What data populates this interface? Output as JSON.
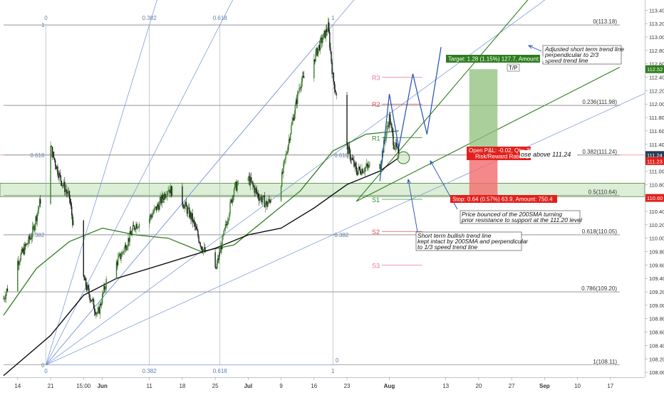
{
  "chart_data": {
    "type": "candlestick",
    "title": "",
    "xlabel": "",
    "ylabel": "",
    "ylim": [
      107.98,
      113.52
    ],
    "price_ticks": [
      108.0,
      108.2,
      108.4,
      108.6,
      108.8,
      109.0,
      109.2,
      109.4,
      109.6,
      109.8,
      110.0,
      110.2,
      110.4,
      110.6,
      110.8,
      111.0,
      111.2,
      111.4,
      111.6,
      111.8,
      112.0,
      112.2,
      112.4,
      112.6,
      112.8,
      113.0,
      113.2,
      113.4
    ],
    "price_tick_labels": [
      "108.00",
      "108.20",
      "108.40",
      "108.60",
      "108.80",
      "109.00",
      "109.20",
      "109.40",
      "109.60",
      "109.80",
      "110.00",
      "110.20",
      "110.40",
      "110.60",
      "110.80",
      "111.00",
      "111.20",
      "111.40",
      "111.60",
      "111.80",
      "112.00",
      "112.20",
      "112.40",
      "112.60",
      "112.80",
      "113.00",
      "113.20",
      "113.40"
    ],
    "time_axis": {
      "first_bar_date": "2018-05-11",
      "last_date": "2018-09-19",
      "labels": [
        {
          "date": "2018-05-14",
          "text": "14"
        },
        {
          "date": "2018-05-21",
          "text": "21"
        },
        {
          "date": "2018-05-28",
          "text": "15:00"
        },
        {
          "date": "2018-06-01",
          "text": "Jun"
        },
        {
          "date": "2018-06-11",
          "text": "11"
        },
        {
          "date": "2018-06-18",
          "text": "18"
        },
        {
          "date": "2018-06-25",
          "text": "25"
        },
        {
          "date": "2018-07-02",
          "text": "Jul"
        },
        {
          "date": "2018-07-09",
          "text": "9"
        },
        {
          "date": "2018-07-16",
          "text": "16"
        },
        {
          "date": "2018-07-23",
          "text": "23"
        },
        {
          "date": "2018-08-01",
          "text": "Aug"
        },
        {
          "date": "2018-08-13",
          "text": "13"
        },
        {
          "date": "2018-08-20",
          "text": "20"
        },
        {
          "date": "2018-08-27",
          "text": "27"
        },
        {
          "date": "2018-09-03",
          "text": "Sep"
        },
        {
          "date": "2018-09-10",
          "text": "10"
        },
        {
          "date": "2018-09-17",
          "text": "17"
        }
      ]
    },
    "price_path": [
      [
        "2018-05-11",
        109.1
      ],
      [
        "2018-05-14",
        109.65
      ],
      [
        "2018-05-17",
        110.05
      ],
      [
        "2018-05-20",
        110.9
      ],
      [
        "2018-05-21",
        111.35
      ],
      [
        "2018-05-23",
        110.9
      ],
      [
        "2018-05-25",
        110.6
      ],
      [
        "2018-05-27",
        109.6
      ],
      [
        "2018-05-29",
        109.2
      ],
      [
        "2018-05-31",
        108.85
      ],
      [
        "2018-06-02",
        109.4
      ],
      [
        "2018-06-05",
        109.75
      ],
      [
        "2018-06-08",
        110.2
      ],
      [
        "2018-06-11",
        110.3
      ],
      [
        "2018-06-13",
        110.5
      ],
      [
        "2018-06-15",
        110.75
      ],
      [
        "2018-06-18",
        110.55
      ],
      [
        "2018-06-20",
        110.3
      ],
      [
        "2018-06-22",
        109.9
      ],
      [
        "2018-06-25",
        109.5
      ],
      [
        "2018-06-27",
        110.1
      ],
      [
        "2018-06-29",
        110.75
      ],
      [
        "2018-07-02",
        110.9
      ],
      [
        "2018-07-04",
        110.65
      ],
      [
        "2018-07-06",
        110.5
      ],
      [
        "2018-07-09",
        110.85
      ],
      [
        "2018-07-11",
        111.6
      ],
      [
        "2018-07-13",
        112.3
      ],
      [
        "2018-07-15",
        112.5
      ],
      [
        "2018-07-17",
        112.85
      ],
      [
        "2018-07-19",
        113.15
      ],
      [
        "2018-07-20",
        112.4
      ],
      [
        "2018-07-23",
        111.35
      ],
      [
        "2018-07-25",
        111.0
      ],
      [
        "2018-07-27",
        111.05
      ],
      [
        "2018-07-30",
        111.1
      ],
      [
        "2018-08-01",
        111.8
      ],
      [
        "2018-08-02",
        111.4
      ],
      [
        "2018-08-03",
        111.25
      ]
    ],
    "series": [
      {
        "name": "",
        "role": "50SMA",
        "color": "#2e7d1e",
        "points": [
          [
            "2018-05-11",
            108.85
          ],
          [
            "2018-05-18",
            109.55
          ],
          [
            "2018-05-25",
            109.95
          ],
          [
            "2018-06-01",
            110.15
          ],
          [
            "2018-06-08",
            110.05
          ],
          [
            "2018-06-15",
            110.0
          ],
          [
            "2018-06-22",
            109.8
          ],
          [
            "2018-06-29",
            109.9
          ],
          [
            "2018-07-06",
            110.3
          ],
          [
            "2018-07-13",
            110.7
          ],
          [
            "2018-07-20",
            111.3
          ],
          [
            "2018-07-27",
            111.55
          ],
          [
            "2018-08-03",
            111.6
          ]
        ]
      },
      {
        "name": "",
        "role": "200SMA",
        "color": "#000000",
        "points": [
          [
            "2018-05-11",
            107.95
          ],
          [
            "2018-05-21",
            108.55
          ],
          [
            "2018-05-28",
            109.15
          ],
          [
            "2018-06-04",
            109.4
          ],
          [
            "2018-06-11",
            109.55
          ],
          [
            "2018-06-18",
            109.7
          ],
          [
            "2018-06-25",
            109.85
          ],
          [
            "2018-07-02",
            110.05
          ],
          [
            "2018-07-09",
            110.15
          ],
          [
            "2018-07-16",
            110.45
          ],
          [
            "2018-07-23",
            110.8
          ],
          [
            "2018-07-30",
            111.0
          ],
          [
            "2018-08-03",
            111.2
          ]
        ]
      }
    ],
    "fibonacci": [
      {
        "label": "0(113.18)",
        "level": 113.18
      },
      {
        "label": "0.236(111.98)",
        "level": 111.98
      },
      {
        "label": "0.382(111.24)",
        "level": 111.24
      },
      {
        "label": "0.5(110.64)",
        "level": 110.64
      },
      {
        "label": "0.618(110.05)",
        "level": 110.05
      },
      {
        "label": "0.786(109.20)",
        "level": 109.2
      },
      {
        "label": "1(108.11)",
        "level": 108.11
      }
    ],
    "fib_time_labels_top": [
      "0",
      "0.382",
      "0.618",
      "1"
    ],
    "fib_time_labels_bottom": [
      "0",
      "0.382",
      "0.618",
      "1",
      "0"
    ],
    "fib_left_labels": [
      {
        "text": "1",
        "level": 113.18
      },
      {
        "text": "0.618",
        "level": 111.24
      },
      {
        "text": "0.382",
        "level": 110.05
      },
      {
        "text": "0",
        "level": 108.11
      }
    ],
    "fib_mid_labels": [
      {
        "text": "0.618",
        "level": 111.24
      },
      {
        "text": "0.382",
        "level": 110.05
      }
    ],
    "pivots": [
      {
        "label": "R3",
        "level": 112.4,
        "color": "#e8789a"
      },
      {
        "label": "R2",
        "level": 112.0,
        "color": "#d94f4f"
      },
      {
        "label": "R1",
        "level": 111.5,
        "color": "#2e8b2e"
      },
      {
        "label": "S1",
        "level": 110.58,
        "color": "#2e8b2e"
      },
      {
        "label": "S2",
        "level": 110.1,
        "color": "#d94f4f"
      },
      {
        "label": "S3",
        "level": 109.6,
        "color": "#e8789a"
      }
    ],
    "support_zone": [
      110.62,
      110.82
    ],
    "position": {
      "entry": 111.24,
      "target": 112.52,
      "stop": 110.6,
      "target_label": "Target: 1.28 (1.15%) 127.7, Amount: 1499.2",
      "stop_label": "Stop: 0.64 (0.57%) 63.9, Amount: 750.4",
      "open_label": "Open P&L: -0.02, Qty: 300",
      "risk_label": "Risk/Reward Ratio: 2",
      "tp_label": "T/P"
    },
    "current_price_tags": [
      {
        "text": "112.52",
        "level": 112.52,
        "color": "#2e7d1e"
      },
      {
        "text": "111.24",
        "level": 111.24,
        "color": "#2a3d52"
      },
      {
        "text": "111.23",
        "level": 111.15,
        "color": "#e0201c"
      },
      {
        "text": "110.60",
        "level": 110.6,
        "color": "#e0201c"
      }
    ],
    "annotations": [
      {
        "lines": [
          "Adjusted short term trend line",
          "perpendicular to 2/3",
          "speed trend line"
        ]
      },
      {
        "lines": [
          "Price bounced of the 200SMA turning",
          "prior resistance to support at the 111.20 level"
        ]
      },
      {
        "lines": [
          "Short term bullish trend line",
          "kept intact by 200SMA and perpendicular",
          "to 1/3 speed trend line"
        ]
      },
      {
        "lines": [
          "ose above 111.24"
        ]
      }
    ],
    "projection_path": [
      [
        "2018-07-30",
        110.85
      ],
      [
        "2018-08-01",
        112.15
      ],
      [
        "2018-08-03",
        111.35
      ],
      [
        "2018-08-06",
        112.45
      ],
      [
        "2018-08-09",
        111.55
      ],
      [
        "2018-08-12",
        112.85
      ]
    ],
    "grid": false,
    "legend": "none"
  }
}
